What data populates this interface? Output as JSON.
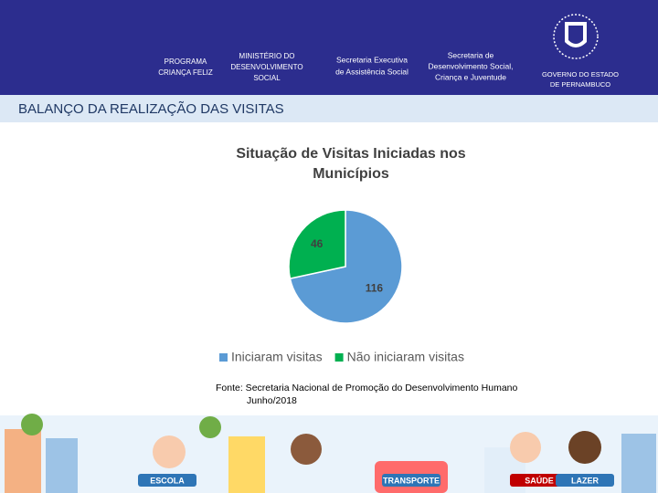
{
  "header": {
    "program": [
      "PROGRAMA",
      "CRIANÇA FELIZ"
    ],
    "ministry": [
      "MINISTÉRIO DO",
      "DESENVOLVIMENTO",
      "SOCIAL"
    ],
    "secretariat1": [
      "Secretaria Executiva",
      "de Assistência Social"
    ],
    "secretariat2": [
      "Secretaria de",
      "Desenvolvimento Social,",
      "Criança e Juventude"
    ],
    "government": [
      "GOVERNO DO ESTADO",
      "DE PERNAMBUCO"
    ]
  },
  "section_title": "BALANÇO DA REALIZAÇÃO DAS VISITAS",
  "chart_data": {
    "type": "pie",
    "title": "Situação de Visitas Iniciadas nos Municípios",
    "categories": [
      "Iniciaram visitas",
      "Não iniciaram visitas"
    ],
    "values": [
      116,
      46
    ],
    "colors": [
      "#5b9bd5",
      "#00b050"
    ],
    "legend": "bottom"
  },
  "source": [
    "Fonte: Secretaria Nacional de Promoção do Desenvolvimento Humano",
    "Junho/2018"
  ],
  "footer_labels": [
    "ESCOLA",
    "TRANSPORTE",
    "SAÚDE",
    "LAZER"
  ]
}
